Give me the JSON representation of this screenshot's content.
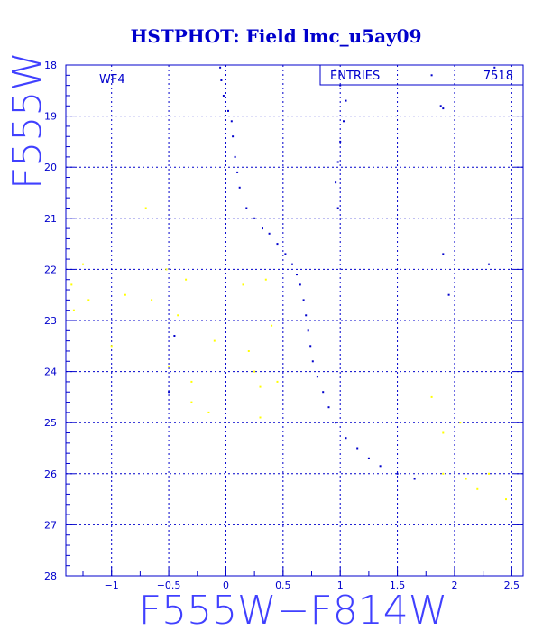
{
  "chart_data": {
    "type": "scatter",
    "title": "HSTPHOT: Field lmc_u5ay09",
    "xlabel": "F555W−F814W",
    "ylabel": "F555W",
    "xlim": [
      -1.4,
      2.6
    ],
    "ylim": [
      28,
      18
    ],
    "y_inverted": true,
    "grid": "dashed",
    "xticks": [
      -1,
      -0.5,
      0,
      0.5,
      1,
      1.5,
      2,
      2.5
    ],
    "xtick_labels": [
      "−1",
      "−0.5",
      "0",
      "0.5",
      "1",
      "1.5",
      "2",
      "2.5"
    ],
    "yticks": [
      18,
      19,
      20,
      21,
      22,
      23,
      24,
      25,
      26,
      27,
      28
    ],
    "ytick_labels": [
      "18",
      "19",
      "20",
      "21",
      "22",
      "23",
      "24",
      "25",
      "26",
      "27",
      "28"
    ],
    "annotation": "WF4",
    "stats_box": {
      "label": "ENTRIES",
      "value": "7518"
    },
    "colors": {
      "main": "#0000cc",
      "secondary": "#ffff00",
      "frame": "#0000cc"
    },
    "series": [
      {
        "color": "#0000cc",
        "points": [
          [
            -0.05,
            18.05
          ],
          [
            -0.04,
            18.3
          ],
          [
            -0.02,
            18.6
          ],
          [
            0.02,
            18.9
          ],
          [
            0.05,
            19.1
          ],
          [
            0.06,
            19.4
          ],
          [
            0.08,
            19.8
          ],
          [
            0.1,
            20.1
          ],
          [
            0.12,
            20.4
          ],
          [
            0.18,
            20.8
          ],
          [
            0.25,
            21.0
          ],
          [
            0.32,
            21.2
          ],
          [
            0.38,
            21.3
          ],
          [
            0.45,
            21.5
          ],
          [
            0.52,
            21.7
          ],
          [
            0.58,
            21.9
          ],
          [
            0.62,
            22.1
          ],
          [
            0.65,
            22.3
          ],
          [
            0.68,
            22.6
          ],
          [
            0.7,
            22.9
          ],
          [
            0.72,
            23.2
          ],
          [
            0.74,
            23.5
          ],
          [
            0.76,
            23.8
          ],
          [
            0.8,
            24.1
          ],
          [
            0.85,
            24.4
          ],
          [
            0.9,
            24.7
          ],
          [
            0.96,
            25.0
          ],
          [
            1.05,
            25.3
          ],
          [
            1.15,
            25.5
          ],
          [
            1.25,
            25.7
          ],
          [
            1.35,
            25.85
          ],
          [
            1.5,
            26.0
          ],
          [
            1.65,
            26.1
          ],
          [
            0.95,
            18.1
          ],
          [
            1.0,
            18.4
          ],
          [
            1.05,
            18.7
          ],
          [
            1.03,
            19.1
          ],
          [
            1.0,
            19.5
          ],
          [
            0.98,
            19.9
          ],
          [
            0.96,
            20.3
          ],
          [
            0.98,
            20.8
          ],
          [
            1.8,
            18.2
          ],
          [
            1.88,
            18.8
          ],
          [
            1.9,
            18.85
          ],
          [
            2.35,
            18.05
          ],
          [
            -0.45,
            23.3
          ],
          [
            -0.5,
            24.4
          ],
          [
            1.9,
            21.7
          ],
          [
            2.3,
            21.9
          ],
          [
            1.95,
            22.5
          ]
        ]
      },
      {
        "color": "#ffff00",
        "points": [
          [
            -1.25,
            21.9
          ],
          [
            -1.35,
            22.3
          ],
          [
            -1.2,
            22.6
          ],
          [
            -1.33,
            22.8
          ],
          [
            -0.88,
            22.5
          ],
          [
            -0.65,
            22.6
          ],
          [
            -0.7,
            20.8
          ],
          [
            -0.52,
            22.0
          ],
          [
            -0.35,
            22.2
          ],
          [
            -0.42,
            22.9
          ],
          [
            -1.0,
            23.5
          ],
          [
            -0.5,
            23.9
          ],
          [
            -0.3,
            24.2
          ],
          [
            -0.1,
            23.4
          ],
          [
            0.15,
            22.3
          ],
          [
            0.35,
            22.2
          ],
          [
            0.4,
            23.1
          ],
          [
            0.2,
            23.6
          ],
          [
            0.25,
            24.0
          ],
          [
            0.3,
            24.3
          ],
          [
            0.45,
            24.2
          ],
          [
            0.3,
            24.9
          ],
          [
            1.8,
            24.5
          ],
          [
            1.9,
            25.2
          ],
          [
            2.05,
            25.0
          ],
          [
            2.1,
            26.1
          ],
          [
            2.3,
            26.0
          ],
          [
            2.45,
            26.5
          ],
          [
            2.2,
            26.3
          ],
          [
            1.9,
            26.0
          ],
          [
            -0.15,
            24.8
          ],
          [
            -0.3,
            24.6
          ]
        ]
      }
    ]
  }
}
